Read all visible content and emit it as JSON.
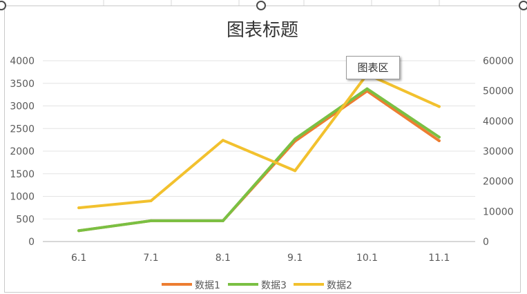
{
  "tooltip": {
    "text": "图表区"
  },
  "colors": {
    "grid": "#e3e3e3",
    "axis": "#bfbfbf",
    "series1": "#ed7d31",
    "series2": "#f2c12e",
    "series3": "#7ac043"
  },
  "chart_data": {
    "type": "line",
    "title": "图表标题",
    "categories": [
      "6.1",
      "7.1",
      "8.1",
      "9.1",
      "10.1",
      "11.1"
    ],
    "y_left": {
      "min": 0,
      "max": 4000,
      "step": 500,
      "ticks": [
        "0",
        "500",
        "1000",
        "1500",
        "2000",
        "2500",
        "3000",
        "3500",
        "4000"
      ]
    },
    "y_right": {
      "min": 0,
      "max": 60000,
      "step": 10000,
      "ticks": [
        "0",
        "10000",
        "20000",
        "30000",
        "40000",
        "50000",
        "60000"
      ]
    },
    "series": [
      {
        "name": "数据1",
        "axis": "left",
        "color": "#ed7d31",
        "values": [
          240,
          460,
          460,
          2220,
          3330,
          2230
        ]
      },
      {
        "name": "数据3",
        "axis": "left",
        "color": "#7ac043",
        "values": [
          240,
          460,
          460,
          2270,
          3380,
          2310
        ]
      },
      {
        "name": "数据2",
        "axis": "right",
        "color": "#f2c12e",
        "values": [
          11200,
          13500,
          33600,
          23500,
          55500,
          44800
        ]
      }
    ],
    "legend_order": [
      "数据1",
      "数据3",
      "数据2"
    ],
    "legend_position": "bottom",
    "grid": true
  }
}
